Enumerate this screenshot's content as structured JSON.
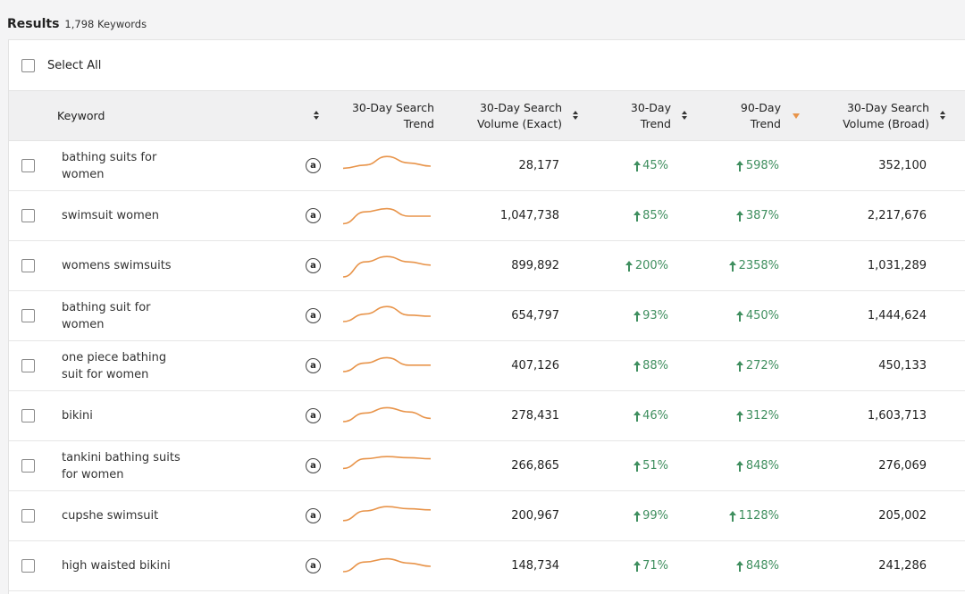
{
  "results": {
    "title": "Results",
    "count": "1,798 Keywords"
  },
  "select_all_label": "Select All",
  "columns": {
    "keyword": "Keyword",
    "trend_30_search_1": "30-Day Search",
    "trend_30_search_2": "Trend",
    "vol_exact_1": "30-Day Search",
    "vol_exact_2": "Volume (Exact)",
    "trend30_1": "30-Day",
    "trend30_2": "Trend",
    "trend90_1": "90-Day",
    "trend90_2": "Trend",
    "vol_broad_1": "30-Day Search",
    "vol_broad_2": "Volume (Broad)"
  },
  "colors": {
    "trend_up": "#3f8f5f",
    "sparkline": "#e8944a",
    "sort_active": "#e8944a"
  },
  "icons": {
    "marketplace": "amazon-icon",
    "trend_direction": "arrow-up-icon"
  },
  "rows": [
    {
      "keyword": "bathing suits for women",
      "exact": "28,177",
      "t30": "45%",
      "t90": "598%",
      "broad": "352,100",
      "spark": [
        0.6,
        0.45,
        0.05,
        0.35,
        0.5
      ]
    },
    {
      "keyword": "swimsuit women",
      "exact": "1,047,738",
      "t30": "85%",
      "t90": "387%",
      "broad": "2,217,676",
      "spark": [
        0.85,
        0.3,
        0.15,
        0.5,
        0.5
      ]
    },
    {
      "keyword": "womens swimsuits",
      "exact": "899,892",
      "t30": "200%",
      "t90": "2358%",
      "broad": "1,031,289",
      "spark": [
        1.0,
        0.3,
        0.05,
        0.3,
        0.45
      ]
    },
    {
      "keyword": "bathing suit for women",
      "exact": "654,797",
      "t30": "93%",
      "t90": "450%",
      "broad": "1,444,624",
      "spark": [
        0.75,
        0.4,
        0.05,
        0.45,
        0.5
      ]
    },
    {
      "keyword": "one piece bathing suit for women",
      "exact": "407,126",
      "t30": "88%",
      "t90": "272%",
      "broad": "450,133",
      "spark": [
        0.75,
        0.35,
        0.1,
        0.45,
        0.45
      ]
    },
    {
      "keyword": "bikini",
      "exact": "278,431",
      "t30": "46%",
      "t90": "312%",
      "broad": "1,603,713",
      "spark": [
        0.75,
        0.35,
        0.1,
        0.3,
        0.6
      ]
    },
    {
      "keyword": "tankini bathing suits for women",
      "exact": "266,865",
      "t30": "51%",
      "t90": "848%",
      "broad": "276,069",
      "spark": [
        0.6,
        0.15,
        0.05,
        0.1,
        0.15
      ]
    },
    {
      "keyword": "cupshe swimsuit",
      "exact": "200,967",
      "t30": "99%",
      "t90": "1128%",
      "broad": "205,002",
      "spark": [
        0.7,
        0.25,
        0.05,
        0.15,
        0.2
      ]
    },
    {
      "keyword": "high waisted bikini",
      "exact": "148,734",
      "t30": "71%",
      "t90": "848%",
      "broad": "241,286",
      "spark": [
        0.75,
        0.3,
        0.15,
        0.35,
        0.5
      ]
    }
  ]
}
